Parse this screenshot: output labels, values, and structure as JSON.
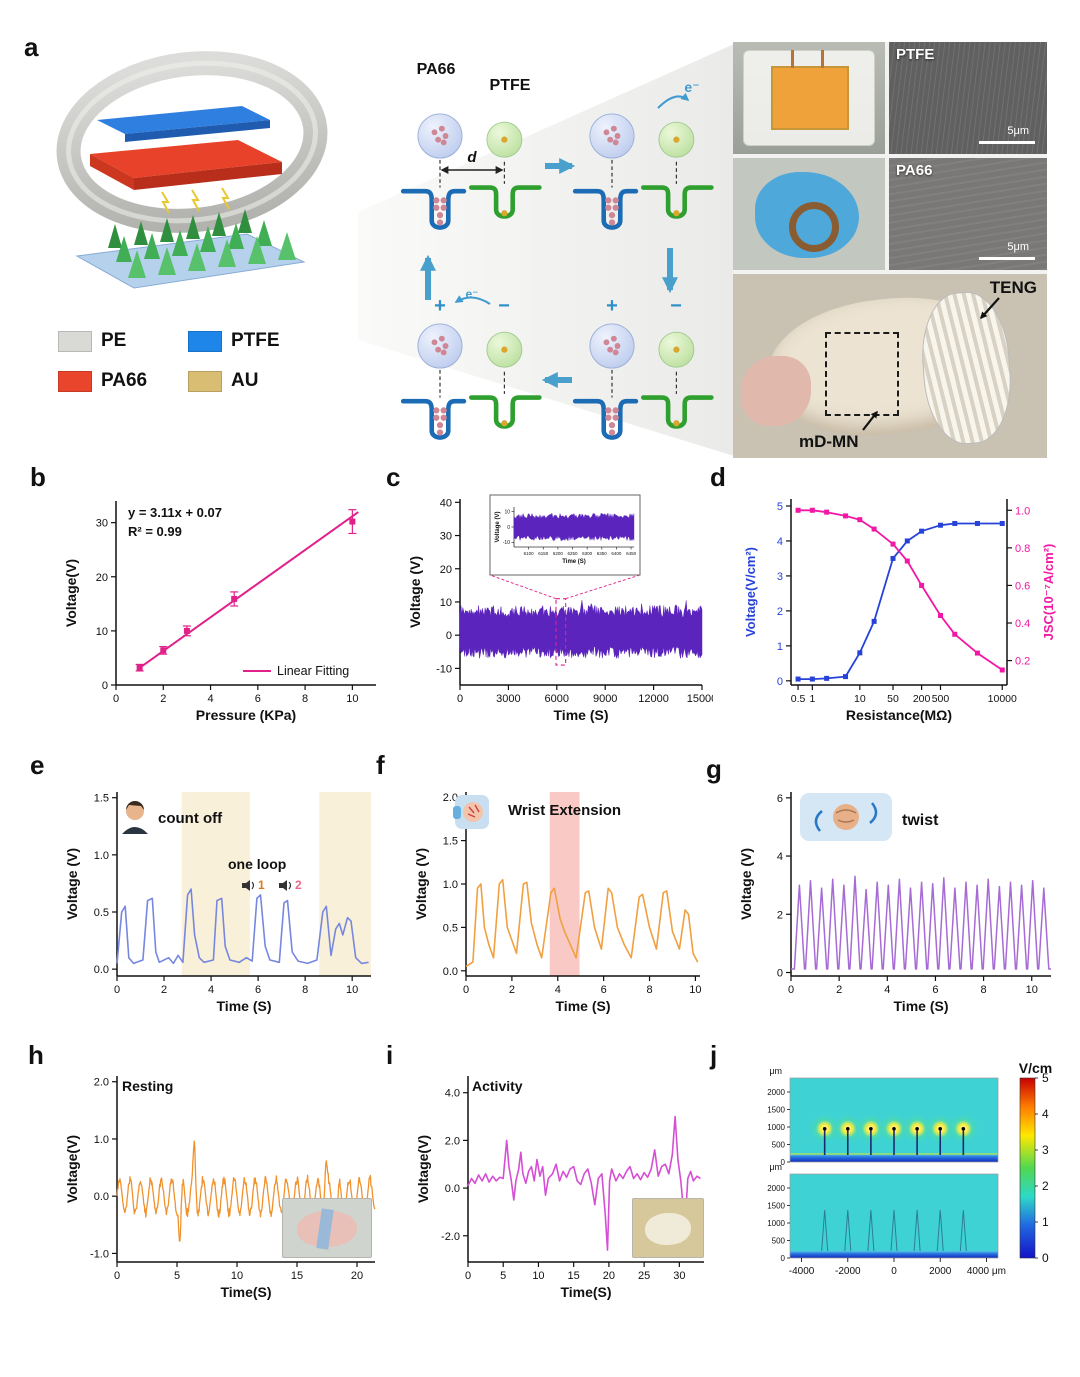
{
  "panels": {
    "a": "a",
    "b": "b",
    "c": "c",
    "d": "d",
    "e": "e",
    "f": "f",
    "g": "g",
    "h": "h",
    "i": "i",
    "j": "j"
  },
  "panel_a": {
    "legend": [
      {
        "label": "PE",
        "color": "#d9d9d6"
      },
      {
        "label": "PTFE",
        "color": "#1e86e8"
      },
      {
        "label": "PA66",
        "color": "#e8452c"
      },
      {
        "label": "AU",
        "color": "#d8bd72"
      }
    ],
    "mechanism": {
      "pa66": "PA66",
      "ptfe": "PTFE",
      "d": "d",
      "e_top": "e⁻",
      "e_bottom": "e⁻",
      "plus_br": "+",
      "minus_br": "−",
      "plus_bl": "+",
      "minus_bl": "−"
    },
    "photos": {
      "sem_top_label": "PTFE",
      "sem_bottom_label": "PA66",
      "scale_top": "5μm",
      "scale_bottom": "5μm",
      "teng_label": "TENG",
      "mdmn_label": "mD-MN"
    }
  },
  "chart_data": [
    {
      "panel": "b",
      "type": "scatter",
      "xlabel": "Pressure (KPa)",
      "ylabel": "Voltage(V)",
      "xlim": [
        0,
        11
      ],
      "ylim": [
        0,
        34
      ],
      "xticks": [
        0,
        2,
        4,
        6,
        8,
        10
      ],
      "yticks": [
        0,
        10,
        20,
        30
      ],
      "color": "#e0218a",
      "points": [
        [
          1,
          3.2,
          0.6
        ],
        [
          2,
          6.4,
          0.7
        ],
        [
          3,
          10,
          0.9
        ],
        [
          5,
          15.9,
          1.3
        ],
        [
          10,
          30.2,
          2.2
        ]
      ],
      "fit_slope": 3.11,
      "fit_intercept": 0.07,
      "annotation1": "y = 3.11x + 0.07",
      "annotation2": "R² = 0.99",
      "legend_label": "Linear Fitting"
    },
    {
      "panel": "c",
      "type": "noise",
      "xlabel": "Time (S)",
      "ylabel": "Voltage (V)",
      "xlim": [
        0,
        15000
      ],
      "ylim": [
        -15,
        41
      ],
      "xticks": [
        0,
        3000,
        6000,
        9000,
        12000,
        15000
      ],
      "yticks": [
        -10,
        0,
        10,
        20,
        30,
        40
      ],
      "color": "#5b24bc",
      "band_upper": 9,
      "band_lower": -7,
      "band_center": 1,
      "highlight": [
        5950,
        6550
      ],
      "inset": {
        "xlabel": "Time (S)",
        "ylabel": "Voltage (V)",
        "xlim": [
          6050,
          6460
        ],
        "ylim": [
          -13,
          13
        ],
        "xticks": [
          6100,
          6150,
          6200,
          6250,
          6300,
          6350,
          6400,
          6450
        ],
        "yticks": [
          -10,
          0,
          10
        ],
        "upper": 9,
        "lower": -9
      }
    },
    {
      "panel": "d",
      "type": "duallog",
      "xlabel": "Resistance(MΩ)",
      "ylabel_left": "Voltage(V/cm²)",
      "ylabel_right": "JSC(10⁻⁷A/cm²)",
      "xlim_log": [
        -0.45,
        4.1
      ],
      "xticks": [
        0.5,
        1,
        10,
        50,
        200,
        500,
        10000
      ],
      "xtick_labels": [
        "0.5",
        "1",
        "10",
        "50",
        "200",
        "500",
        "10000"
      ],
      "ylim_left": [
        -0.12,
        5.2
      ],
      "yticks_left": [
        0,
        1,
        2,
        3,
        4,
        5
      ],
      "ylim_right": [
        0.07,
        1.06
      ],
      "yticks_right": [
        "0.2",
        "0.4",
        "0.6",
        "0.8",
        "1.0"
      ],
      "color_left": "#2742d8",
      "color_right": "#f217a5",
      "series_left_x": [
        0.5,
        1,
        2,
        5,
        10,
        20,
        50,
        100,
        200,
        500,
        1000,
        3000,
        10000
      ],
      "series_left_y": [
        0.05,
        0.05,
        0.07,
        0.12,
        0.8,
        1.7,
        3.5,
        4.0,
        4.28,
        4.45,
        4.5,
        4.5,
        4.5
      ],
      "series_right_x": [
        0.5,
        1,
        2,
        5,
        10,
        20,
        50,
        100,
        200,
        500,
        1000,
        3000,
        10000
      ],
      "series_right_y": [
        1.0,
        1.0,
        0.99,
        0.97,
        0.95,
        0.9,
        0.82,
        0.73,
        0.6,
        0.44,
        0.34,
        0.24,
        0.15
      ]
    },
    {
      "panel": "e",
      "type": "line",
      "xlabel": "Time (S)",
      "ylabel": "Voltage (V)",
      "xlim": [
        0,
        10.8
      ],
      "ylim": [
        -0.06,
        1.55
      ],
      "xticks": [
        0,
        2,
        4,
        6,
        8,
        10
      ],
      "yticks": [
        0,
        0.5,
        1,
        1.5
      ],
      "ytick_labels": [
        "0.0",
        "0.5",
        "1.0",
        "1.5"
      ],
      "color": "#7687e0",
      "bands": [
        [
          2.75,
          5.65
        ],
        [
          8.6,
          10.8
        ]
      ],
      "band_color": "#f8edd2",
      "labels": {
        "count_off": "count off",
        "one_loop": "one loop",
        "speaker1": "1",
        "speaker2": "2"
      },
      "points": [
        [
          0,
          0.05
        ],
        [
          0.2,
          0.5
        ],
        [
          0.35,
          0.55
        ],
        [
          0.5,
          0.1
        ],
        [
          0.7,
          0.05
        ],
        [
          1.1,
          0.08
        ],
        [
          1.3,
          0.6
        ],
        [
          1.5,
          0.62
        ],
        [
          1.65,
          0.15
        ],
        [
          1.8,
          0.06
        ],
        [
          2.2,
          0.1
        ],
        [
          2.4,
          0.05
        ],
        [
          2.6,
          0.12
        ],
        [
          2.8,
          0.06
        ],
        [
          3.0,
          0.65
        ],
        [
          3.15,
          0.7
        ],
        [
          3.3,
          0.3
        ],
        [
          3.5,
          0.1
        ],
        [
          3.7,
          0.06
        ],
        [
          4.1,
          0.08
        ],
        [
          4.25,
          0.6
        ],
        [
          4.45,
          0.62
        ],
        [
          4.6,
          0.2
        ],
        [
          4.8,
          0.08
        ],
        [
          5.2,
          0.06
        ],
        [
          5.5,
          0.1
        ],
        [
          5.75,
          0.07
        ],
        [
          5.95,
          0.62
        ],
        [
          6.1,
          0.65
        ],
        [
          6.3,
          0.2
        ],
        [
          6.5,
          0.08
        ],
        [
          6.9,
          0.06
        ],
        [
          7.1,
          0.58
        ],
        [
          7.25,
          0.6
        ],
        [
          7.45,
          0.15
        ],
        [
          7.7,
          0.07
        ],
        [
          8.1,
          0.05
        ],
        [
          8.5,
          0.08
        ],
        [
          8.75,
          0.5
        ],
        [
          8.9,
          0.55
        ],
        [
          9.1,
          0.12
        ],
        [
          9.3,
          0.35
        ],
        [
          9.45,
          0.4
        ],
        [
          9.6,
          0.3
        ],
        [
          9.8,
          0.45
        ],
        [
          9.95,
          0.42
        ],
        [
          10.15,
          0.1
        ],
        [
          10.4,
          0.05
        ],
        [
          10.7,
          0.06
        ]
      ]
    },
    {
      "panel": "f",
      "type": "line",
      "xlabel": "Time (S)",
      "ylabel": "Voltage (V)",
      "xlim": [
        0,
        10.2
      ],
      "ylim": [
        -0.06,
        2.06
      ],
      "xticks": [
        0,
        2,
        4,
        6,
        8,
        10
      ],
      "yticks": [
        0,
        0.5,
        1,
        1.5,
        2
      ],
      "ytick_labels": [
        "0.0",
        "0.5",
        "1.0",
        "1.5",
        "2.0"
      ],
      "color": "#f0a040",
      "bands": [
        [
          3.65,
          4.95
        ]
      ],
      "band_color": "#f8c0bc",
      "title": "Wrist Extension",
      "points": [
        [
          0,
          0.05
        ],
        [
          0.3,
          0.1
        ],
        [
          0.5,
          0.95
        ],
        [
          0.65,
          1.0
        ],
        [
          0.8,
          0.5
        ],
        [
          1.0,
          0.3
        ],
        [
          1.2,
          0.15
        ],
        [
          1.45,
          1.0
        ],
        [
          1.6,
          1.05
        ],
        [
          1.8,
          0.5
        ],
        [
          2.0,
          0.35
        ],
        [
          2.2,
          0.2
        ],
        [
          2.5,
          1.0
        ],
        [
          2.65,
          1.02
        ],
        [
          2.85,
          0.55
        ],
        [
          3.1,
          0.3
        ],
        [
          3.3,
          0.15
        ],
        [
          3.7,
          0.9
        ],
        [
          3.85,
          0.95
        ],
        [
          4.1,
          0.6
        ],
        [
          4.3,
          0.45
        ],
        [
          4.55,
          0.3
        ],
        [
          4.8,
          0.15
        ],
        [
          5.2,
          0.9
        ],
        [
          5.35,
          0.92
        ],
        [
          5.6,
          0.5
        ],
        [
          5.9,
          0.25
        ],
        [
          6.2,
          0.95
        ],
        [
          6.35,
          0.9
        ],
        [
          6.6,
          0.5
        ],
        [
          6.9,
          0.3
        ],
        [
          7.2,
          0.15
        ],
        [
          7.55,
          0.85
        ],
        [
          7.7,
          0.88
        ],
        [
          8.0,
          0.5
        ],
        [
          8.3,
          0.25
        ],
        [
          8.6,
          0.9
        ],
        [
          8.75,
          0.92
        ],
        [
          9.0,
          0.45
        ],
        [
          9.3,
          0.25
        ],
        [
          9.55,
          0.7
        ],
        [
          9.7,
          0.65
        ],
        [
          9.9,
          0.2
        ],
        [
          10.1,
          0.1
        ]
      ]
    },
    {
      "panel": "g",
      "type": "peaks",
      "xlabel": "Time (S)",
      "ylabel": "Voltage (V)",
      "xlim": [
        0,
        10.8
      ],
      "ylim": [
        -0.12,
        6.2
      ],
      "xticks": [
        0,
        2,
        4,
        6,
        8,
        10
      ],
      "yticks": [
        0,
        2,
        4,
        6
      ],
      "color": "#a66bd4",
      "title": "twist",
      "baseline": 0.12,
      "t_start": 0.35,
      "t_end": 10.5,
      "peaks": [
        3.0,
        3.15,
        2.9,
        3.2,
        3.0,
        3.3,
        2.85,
        3.1,
        3.0,
        3.2,
        2.9,
        3.1,
        3.05,
        3.25,
        2.9,
        3.1,
        3.0,
        3.2,
        2.95,
        3.1,
        3.0,
        3.15,
        2.9
      ]
    },
    {
      "panel": "h",
      "type": "osc",
      "xlabel": "Time(S)",
      "ylabel": "Voltage(V)",
      "xlim": [
        0,
        21.5
      ],
      "ylim": [
        -1.15,
        2.1
      ],
      "xticks": [
        0,
        5,
        10,
        15,
        20
      ],
      "yticks": [
        -1,
        0,
        1,
        2
      ],
      "ytick_labels": [
        "-1.0",
        "0.0",
        "1.0",
        "2.0"
      ],
      "color": "#f0922e",
      "title": "Resting",
      "freq": 1.15,
      "amp": 0.3,
      "spikes": [
        [
          5.25,
          -0.85
        ],
        [
          6.45,
          0.8
        ],
        [
          17.4,
          0.55
        ],
        [
          18.3,
          -0.5
        ]
      ]
    },
    {
      "panel": "i",
      "type": "line",
      "xlabel": "Time(S)",
      "ylabel": "Voltage(V)",
      "xlim": [
        0,
        33.5
      ],
      "ylim": [
        -3.1,
        4.7
      ],
      "xticks": [
        0,
        5,
        10,
        15,
        20,
        25,
        30
      ],
      "yticks": [
        -2,
        0,
        2,
        4
      ],
      "ytick_labels": [
        "-2.0",
        "0.0",
        "2.0",
        "4.0"
      ],
      "color": "#d44fd4",
      "title": "Activity",
      "points": [
        [
          0,
          0.1
        ],
        [
          0.5,
          0.4
        ],
        [
          1,
          0.2
        ],
        [
          1.5,
          0.55
        ],
        [
          2,
          0.3
        ],
        [
          2.5,
          0.6
        ],
        [
          3,
          0.25
        ],
        [
          3.5,
          0.5
        ],
        [
          4,
          0.3
        ],
        [
          4.5,
          0.45
        ],
        [
          5,
          0.4
        ],
        [
          5.5,
          2.0
        ],
        [
          5.8,
          0.9
        ],
        [
          6.1,
          0.4
        ],
        [
          6.5,
          -0.5
        ],
        [
          6.8,
          0.3
        ],
        [
          7.2,
          0.8
        ],
        [
          7.5,
          1.5
        ],
        [
          7.8,
          0.6
        ],
        [
          8.2,
          0.2
        ],
        [
          8.6,
          0.7
        ],
        [
          9,
          0.9
        ],
        [
          9.4,
          0.3
        ],
        [
          9.8,
          1.2
        ],
        [
          10.2,
          0.5
        ],
        [
          10.6,
          0.9
        ],
        [
          11,
          -0.3
        ],
        [
          11.4,
          0.4
        ],
        [
          12,
          0.6
        ],
        [
          12.5,
          1.0
        ],
        [
          13,
          0.3
        ],
        [
          13.5,
          0.7
        ],
        [
          14,
          0.45
        ],
        [
          14.5,
          0.8
        ],
        [
          15,
          0.9
        ],
        [
          15.5,
          0.3
        ],
        [
          16,
          0.15
        ],
        [
          16.5,
          0.6
        ],
        [
          17,
          0.8
        ],
        [
          17.5,
          0.2
        ],
        [
          18,
          -0.7
        ],
        [
          18.5,
          0.4
        ],
        [
          19,
          0.6
        ],
        [
          19.5,
          -1.2
        ],
        [
          19.8,
          -2.6
        ],
        [
          20.1,
          0.3
        ],
        [
          20.4,
          0.8
        ],
        [
          21,
          0.3
        ],
        [
          21.5,
          0.6
        ],
        [
          22,
          0.4
        ],
        [
          22.5,
          0.7
        ],
        [
          23,
          0.9
        ],
        [
          23.5,
          0.4
        ],
        [
          24,
          0.6
        ],
        [
          24.5,
          0.35
        ],
        [
          25,
          0.65
        ],
        [
          25.5,
          0.45
        ],
        [
          26,
          0.8
        ],
        [
          26.5,
          1.6
        ],
        [
          27,
          0.5
        ],
        [
          27.5,
          0.9
        ],
        [
          28,
          1.0
        ],
        [
          28.5,
          0.6
        ],
        [
          29,
          1.4
        ],
        [
          29.4,
          3.0
        ],
        [
          29.8,
          1.2
        ],
        [
          30.2,
          0.3
        ],
        [
          30.8,
          -1.6
        ],
        [
          31.2,
          0.4
        ],
        [
          31.6,
          0.7
        ],
        [
          32,
          0.3
        ],
        [
          32.5,
          0.5
        ],
        [
          33,
          0.4
        ]
      ]
    },
    {
      "panel": "j",
      "type": "heatmap",
      "colorbar_title": "V/cm",
      "colorbar_ticks": [
        "5",
        "4",
        "3",
        "2",
        "1",
        "0"
      ],
      "xticks": [
        -4000,
        -2000,
        0,
        2000,
        4000
      ],
      "x_unit": "μm",
      "yticks": [
        2000,
        1500,
        1000,
        500,
        0
      ],
      "y_unit": "μm",
      "needles_x": [
        -3000,
        -2000,
        -1000,
        0,
        1000,
        2000,
        3000
      ],
      "needle_tip_um": 950,
      "field_color": "#3ed2d4",
      "base_color": "#1636cf",
      "hot_color": "#ffec3f"
    }
  ]
}
